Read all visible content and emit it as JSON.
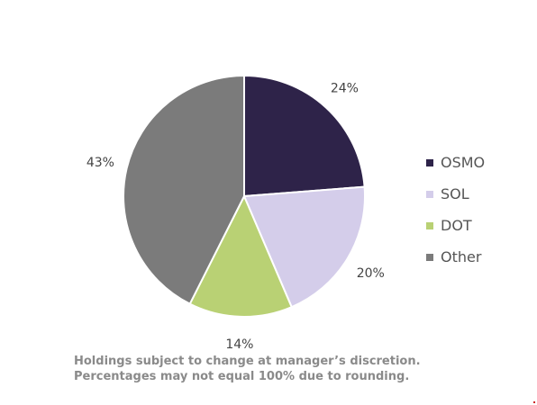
{
  "chart_data": {
    "type": "pie",
    "title": "",
    "slices": [
      {
        "label": "OSMO",
        "value": 24,
        "display": "24%",
        "color": "#2e2349"
      },
      {
        "label": "SOL",
        "value": 20,
        "display": "20%",
        "color": "#d4cdea"
      },
      {
        "label": "DOT",
        "value": 14,
        "display": "14%",
        "color": "#b9d174"
      },
      {
        "label": "Other",
        "value": 43,
        "display": "43%",
        "color": "#7b7b7b"
      }
    ],
    "legend_position": "right",
    "slice_border_color": "#ffffff"
  },
  "legend": {
    "items": [
      {
        "label": "OSMO",
        "color": "#2e2349"
      },
      {
        "label": "SOL",
        "color": "#d4cdea"
      },
      {
        "label": "DOT",
        "color": "#b9d174"
      },
      {
        "label": "Other",
        "color": "#7b7b7b"
      }
    ]
  },
  "footnote": {
    "text": "Holdings subject to change at manager’s discretion.  Percentages may not equal 100% due to rounding."
  }
}
